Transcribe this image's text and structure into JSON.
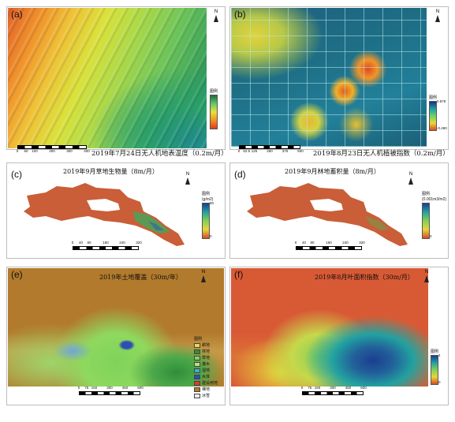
{
  "panels": {
    "a": {
      "letter": "(a)",
      "caption": "2019年7月24日无人机地表温度（0.2m/月）",
      "legend_title": "图例",
      "legend_high": "",
      "legend_low": "",
      "scale_ticks": [
        "0",
        "50",
        "100",
        "200",
        "300",
        "400"
      ],
      "north_letter": "N"
    },
    "b": {
      "letter": "(b)",
      "caption": "2019年8月23日无人机植被指数（0.2m/月）",
      "legend_title": "图例",
      "legend_high": "0.879",
      "legend_low": "-0.490",
      "scale_ticks": [
        "0",
        "62.5",
        "125",
        "250",
        "375",
        "500"
      ],
      "north_letter": "N"
    },
    "c": {
      "letter": "(c)",
      "title": "2019年9月草地生物量（8m/月）",
      "legend_title": "图例",
      "legend_unit": "(g/m2)",
      "legend_high": "80",
      "legend_low": "0",
      "scale_ticks": [
        "0",
        "40",
        "80",
        "160",
        "240",
        "320"
      ],
      "north_letter": "N"
    },
    "d": {
      "letter": "(d)",
      "title": "2019年9月林地蓄积量（8m/月）",
      "legend_title": "图例",
      "legend_unit": "(0.001m3/m2)",
      "legend_high": "",
      "legend_low": "0",
      "scale_ticks": [
        "0",
        "40",
        "80",
        "160",
        "240",
        "320"
      ],
      "north_letter": "N"
    },
    "e": {
      "letter": "(e)",
      "title": "2019年土地覆盖（30m/年）",
      "legend_title": "图例",
      "classes": [
        {
          "label": "耕地",
          "color": "#f2d24a"
        },
        {
          "label": "林地",
          "color": "#2f8f3a"
        },
        {
          "label": "草地",
          "color": "#7fd35a"
        },
        {
          "label": "灌木",
          "color": "#b8e27a"
        },
        {
          "label": "湿地",
          "color": "#39b3c9"
        },
        {
          "label": "水体",
          "color": "#2d4fb3"
        },
        {
          "label": "建设用地",
          "color": "#e03a2a"
        },
        {
          "label": "裸地",
          "color": "#b27a2c"
        },
        {
          "label": "冰雪",
          "color": "#e9eef5"
        }
      ],
      "scale_ticks": [
        "0",
        "75",
        "150",
        "300",
        "450",
        "600"
      ],
      "north_letter": "N"
    },
    "f": {
      "letter": "(f)",
      "title": "2019年8月叶面积指数（30m/月）",
      "legend_title": "图例",
      "legend_high": "4",
      "legend_low": "0",
      "scale_ticks": [
        "0",
        "75",
        "150",
        "300",
        "450",
        "600"
      ],
      "north_letter": "N"
    }
  },
  "colors": {
    "temperature_hot": "#e8682a",
    "temperature_mid": "#d9e23c",
    "temperature_cool": "#2f9a5a",
    "ndvi_water": "#1e6a86",
    "red_bg": "#d85a35",
    "landcover_bare": "#b27a2c"
  }
}
